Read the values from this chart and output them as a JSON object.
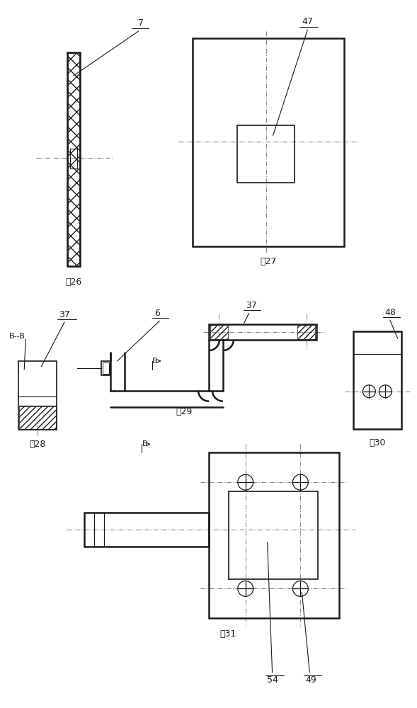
{
  "bg_color": "#ffffff",
  "line_color": "#1a1a1a",
  "lw": 1.2,
  "lw_thick": 1.8,
  "fig_labels": [
    "图26",
    "图27",
    "图28",
    "图29",
    "图30",
    "图31"
  ],
  "num_labels": [
    "7",
    "47",
    "37",
    "B--B",
    "6",
    "37",
    "48",
    "B",
    "B",
    "54",
    "49"
  ]
}
